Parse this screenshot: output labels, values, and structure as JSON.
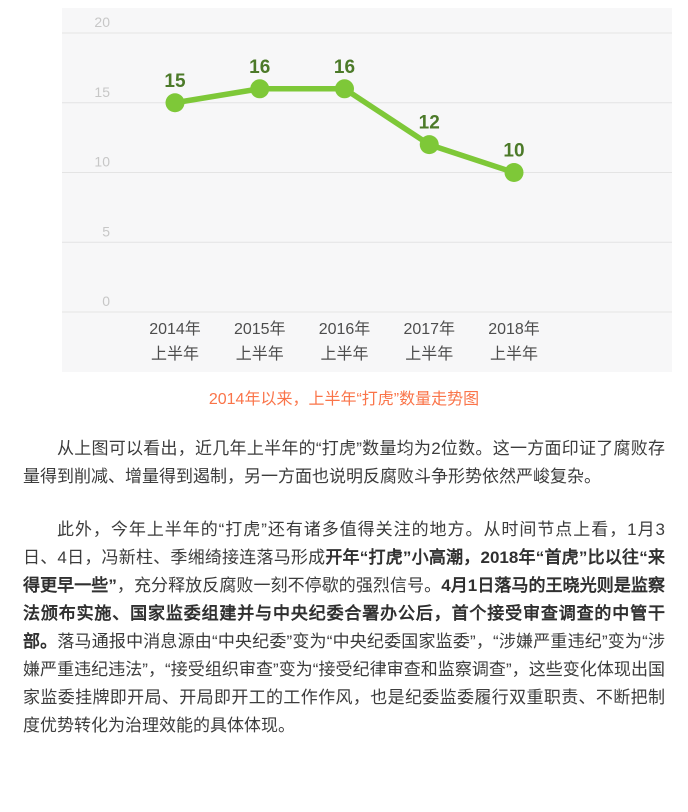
{
  "chart": {
    "caption": "2014年以来，上半年“打虎”数量走势图",
    "colors": {
      "panel_bg": "#f7f7f8",
      "grid": "#e4e4e4",
      "line": "#7ec838",
      "point": "#7ec838",
      "value_label": "#4c7a29",
      "y_tick": "#c7c7c7",
      "x_label": "#4d4d4d",
      "caption": "#fa7449"
    }
  },
  "chart_data": {
    "type": "line",
    "title": "2014年以来，上半年“打虎”数量走势图",
    "categories": [
      [
        "2014年",
        "上半年"
      ],
      [
        "2015年",
        "上半年"
      ],
      [
        "2016年",
        "上半年"
      ],
      [
        "2017年",
        "上半年"
      ],
      [
        "2018年",
        "上半年"
      ]
    ],
    "values": [
      15,
      16,
      16,
      12,
      10
    ],
    "ylim": [
      0,
      20
    ],
    "yticks": [
      0,
      5,
      10,
      15,
      20
    ],
    "grid": true,
    "legend": false,
    "data_labels": true,
    "xlabel": "",
    "ylabel": ""
  },
  "article": {
    "paragraphs": [
      {
        "segments": [
          {
            "bold": false,
            "text": "从上图可以看出，近几年上半年的“打虎”数量均为2位数。这一方面印证了腐败存量得到削减、增量得到遏制，另一方面也说明反腐败斗争形势依然严峻复杂。"
          }
        ]
      },
      {
        "segments": [
          {
            "bold": false,
            "text": "此外，今年上半年的“打虎”还有诸多值得关注的地方。从时间节点上看，1月3日、4日，冯新柱、季缃绮接连落马形成"
          },
          {
            "bold": true,
            "text": "开年“打虎”小高潮，2018年“首虎”比以往“来得更早一些”"
          },
          {
            "bold": false,
            "text": "，充分释放反腐败一刻不停歇的强烈信号。"
          },
          {
            "bold": true,
            "text": "4月1日落马的王晓光则是监察法颁布实施、国家监委组建并与中央纪委合署办公后，首个接受审查调查的中管干部。"
          },
          {
            "bold": false,
            "text": "落马通报中消息源由“中央纪委”变为“中央纪委国家监委”，“涉嫌严重违纪”变为“涉嫌严重违纪违法”，“接受组织审查”变为“接受纪律审查和监察调查”，这些变化体现出国家监委挂牌即开局、开局即开工的工作作风，也是纪委监委履行双重职责、不断把制度优势转化为治理效能的具体体现。"
          }
        ]
      }
    ]
  }
}
